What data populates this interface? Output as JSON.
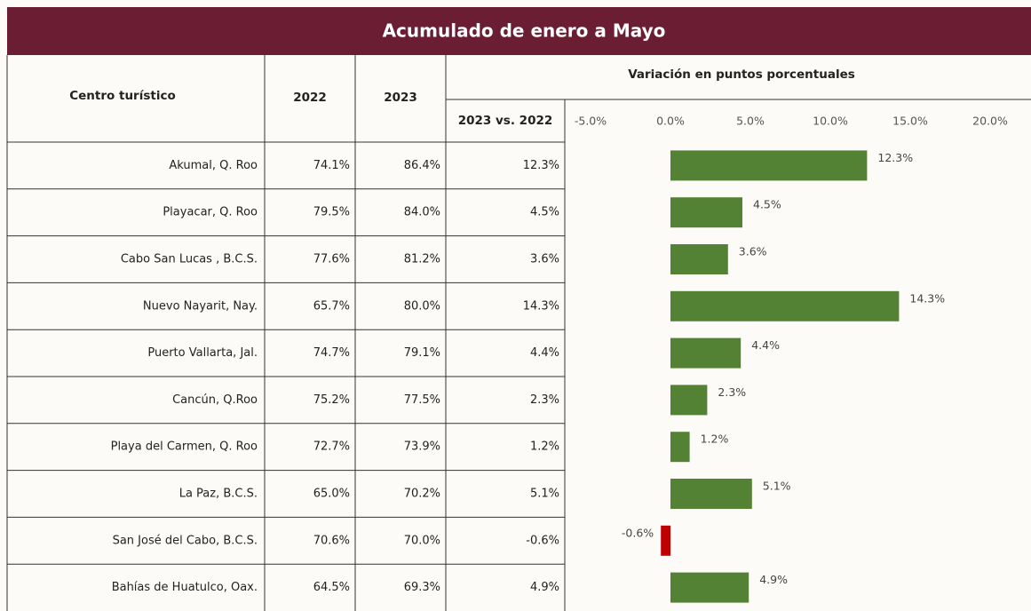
{
  "title": "Acumulado de enero a Mayo",
  "table": {
    "headers": [
      "Centro turístico",
      "2022",
      "2023",
      "Variación en puntos porcentuales",
      "2023 vs. 2022"
    ],
    "rows": [
      [
        "Akumal, Q. Roo",
        "74.1%",
        "86.4%",
        "12.3%"
      ],
      [
        "Playacar, Q. Roo",
        "79.5%",
        "84.0%",
        "4.5%"
      ],
      [
        "Cabo San Lucas , B.C.S.",
        "77.6%",
        "81.2%",
        "3.6%"
      ],
      [
        "Nuevo Nayarit, Nay.",
        "65.7%",
        "80.0%",
        "14.3%"
      ],
      [
        "Puerto Vallarta, Jal.",
        "74.7%",
        "79.1%",
        "4.4%"
      ],
      [
        "Cancún, Q.Roo",
        "75.2%",
        "77.5%",
        "2.3%"
      ],
      [
        "Playa del Carmen, Q. Roo",
        "72.7%",
        "73.9%",
        "1.2%"
      ],
      [
        "La Paz, B.C.S.",
        "65.0%",
        "70.2%",
        "5.1%"
      ],
      [
        "San José del Cabo, B.C.S.",
        "70.6%",
        "70.0%",
        "-0.6%"
      ],
      [
        "Bahías de Huatulco, Oax.",
        "64.5%",
        "69.3%",
        "4.9%"
      ]
    ]
  },
  "chart_data": {
    "type": "bar",
    "orientation": "horizontal",
    "values": [
      12.3,
      4.5,
      3.6,
      14.3,
      4.4,
      2.3,
      1.2,
      5.1,
      -0.6,
      4.9
    ],
    "value_labels": [
      "12.3%",
      "4.5%",
      "3.6%",
      "14.3%",
      "4.4%",
      "2.3%",
      "1.2%",
      "5.1%",
      "-0.6%",
      "4.9%"
    ],
    "color": "#548235",
    "negative_color": "#c00000",
    "xlim": [
      -5,
      20
    ],
    "xticks": [
      {
        "value": -5,
        "label": "-5.0%"
      },
      {
        "value": 0,
        "label": "0.0%"
      },
      {
        "value": 5,
        "label": "5.0%"
      },
      {
        "value": 10,
        "label": "10.0%"
      },
      {
        "value": 15,
        "label": "15.0%"
      },
      {
        "value": 20,
        "label": "20.0%"
      }
    ]
  }
}
